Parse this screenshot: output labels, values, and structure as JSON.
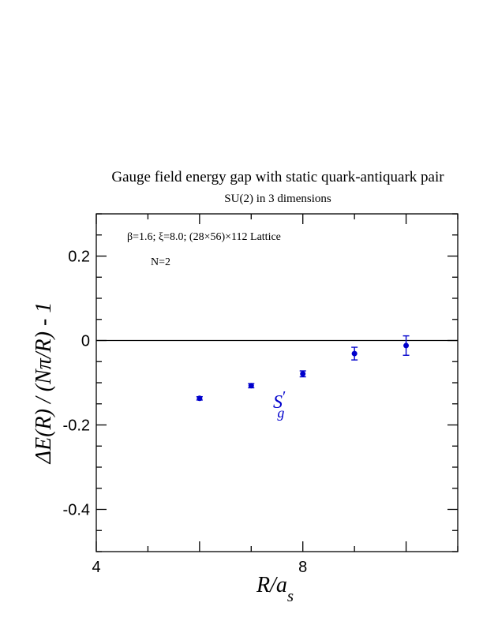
{
  "chart_data": {
    "type": "scatter",
    "title": "Gauge field energy gap with static quark-antiquark pair",
    "subtitle": "SU(2) in 3 dimensions",
    "annotations": {
      "params": "β=1.6;  ξ=8.0; (28×56)×112 Lattice",
      "n": "N=2"
    },
    "xlabel": {
      "main": "R/a",
      "sub": "s"
    },
    "ylabel": "ΔE(R) / (Nπ/R) - 1",
    "xlim": [
      4,
      11
    ],
    "ylim": [
      -0.5,
      0.3
    ],
    "x_ticks": [
      4,
      8
    ],
    "x_tick_labels": [
      "4",
      "8"
    ],
    "y_ticks": [
      -0.4,
      -0.2,
      0,
      0.2
    ],
    "y_tick_labels": [
      "-0.4",
      "-0.2",
      "0",
      "0.2"
    ],
    "zero_line": true,
    "grid": false,
    "color": "#0000cc",
    "series": [
      {
        "label": {
          "main": "S",
          "prime": "′",
          "sub": "g"
        },
        "x": [
          6,
          7,
          8,
          9,
          10
        ],
        "y": [
          -0.137,
          -0.107,
          -0.079,
          -0.031,
          -0.012
        ],
        "err": [
          0.004,
          0.005,
          0.007,
          0.015,
          0.023
        ]
      }
    ]
  }
}
